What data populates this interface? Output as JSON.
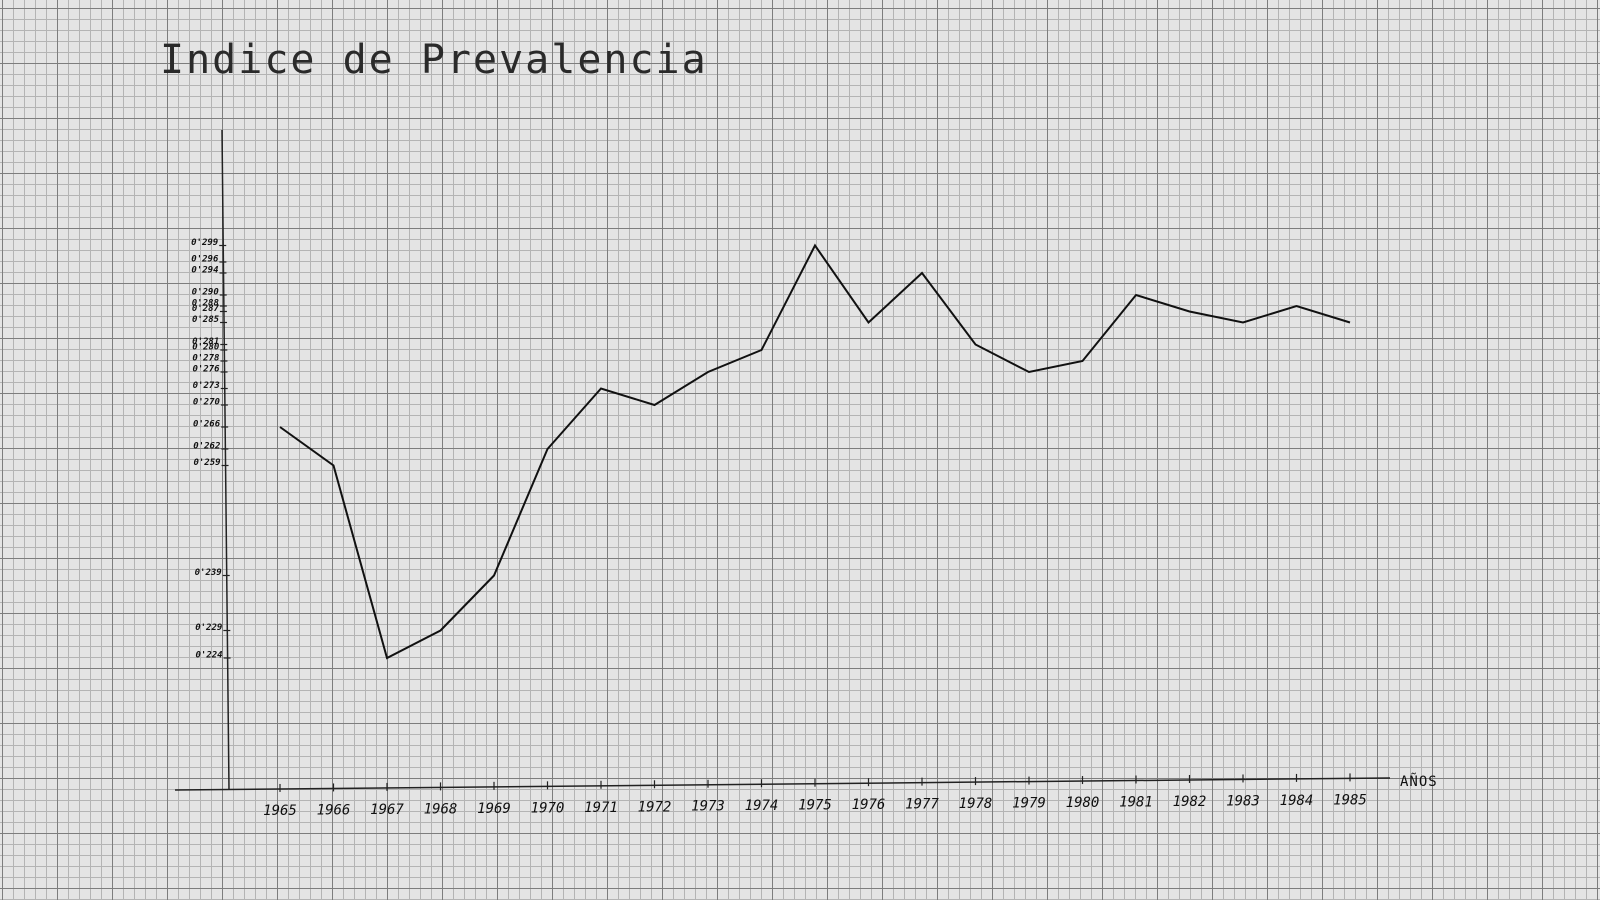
{
  "chart_data": {
    "type": "line",
    "title": "Indice de Prevalencia",
    "x_label": "AÑOS",
    "x": [
      1965,
      1966,
      1967,
      1968,
      1969,
      1970,
      1971,
      1972,
      1973,
      1974,
      1975,
      1976,
      1977,
      1978,
      1979,
      1980,
      1981,
      1982,
      1983,
      1984,
      1985
    ],
    "series": [
      {
        "name": "Indice de Prevalencia",
        "color": "#111111",
        "values": [
          0.266,
          0.259,
          0.224,
          0.229,
          0.239,
          0.262,
          0.273,
          0.27,
          0.276,
          0.28,
          0.299,
          0.285,
          0.294,
          0.281,
          0.276,
          0.278,
          0.29,
          0.287,
          0.285,
          0.288,
          0.285
        ]
      }
    ],
    "xlim": [
      1964,
      1986
    ],
    "xticks": [
      1965,
      1966,
      1967,
      1968,
      1969,
      1970,
      1971,
      1972,
      1973,
      1974,
      1975,
      1976,
      1977,
      1978,
      1979,
      1980,
      1981,
      1982,
      1983,
      1984,
      1985
    ],
    "ylim": [
      0.2,
      0.32
    ],
    "yticks": [
      {
        "value": 0.224,
        "label": "0'224"
      },
      {
        "value": 0.229,
        "label": "0'229"
      },
      {
        "value": 0.239,
        "label": "0'239"
      },
      {
        "value": 0.259,
        "label": "0'259"
      },
      {
        "value": 0.262,
        "label": "0'262"
      },
      {
        "value": 0.266,
        "label": "0'266"
      },
      {
        "value": 0.27,
        "label": "0'270"
      },
      {
        "value": 0.273,
        "label": "0'273"
      },
      {
        "value": 0.276,
        "label": "0'276"
      },
      {
        "value": 0.278,
        "label": "0'278"
      },
      {
        "value": 0.28,
        "label": "0'280"
      },
      {
        "value": 0.281,
        "label": "0'281"
      },
      {
        "value": 0.285,
        "label": "0'285"
      },
      {
        "value": 0.287,
        "label": "0'287"
      },
      {
        "value": 0.288,
        "label": "0'288"
      },
      {
        "value": 0.29,
        "label": "0'290"
      },
      {
        "value": 0.294,
        "label": "0'294"
      },
      {
        "value": 0.296,
        "label": "0'296"
      },
      {
        "value": 0.299,
        "label": "0'299"
      }
    ]
  }
}
